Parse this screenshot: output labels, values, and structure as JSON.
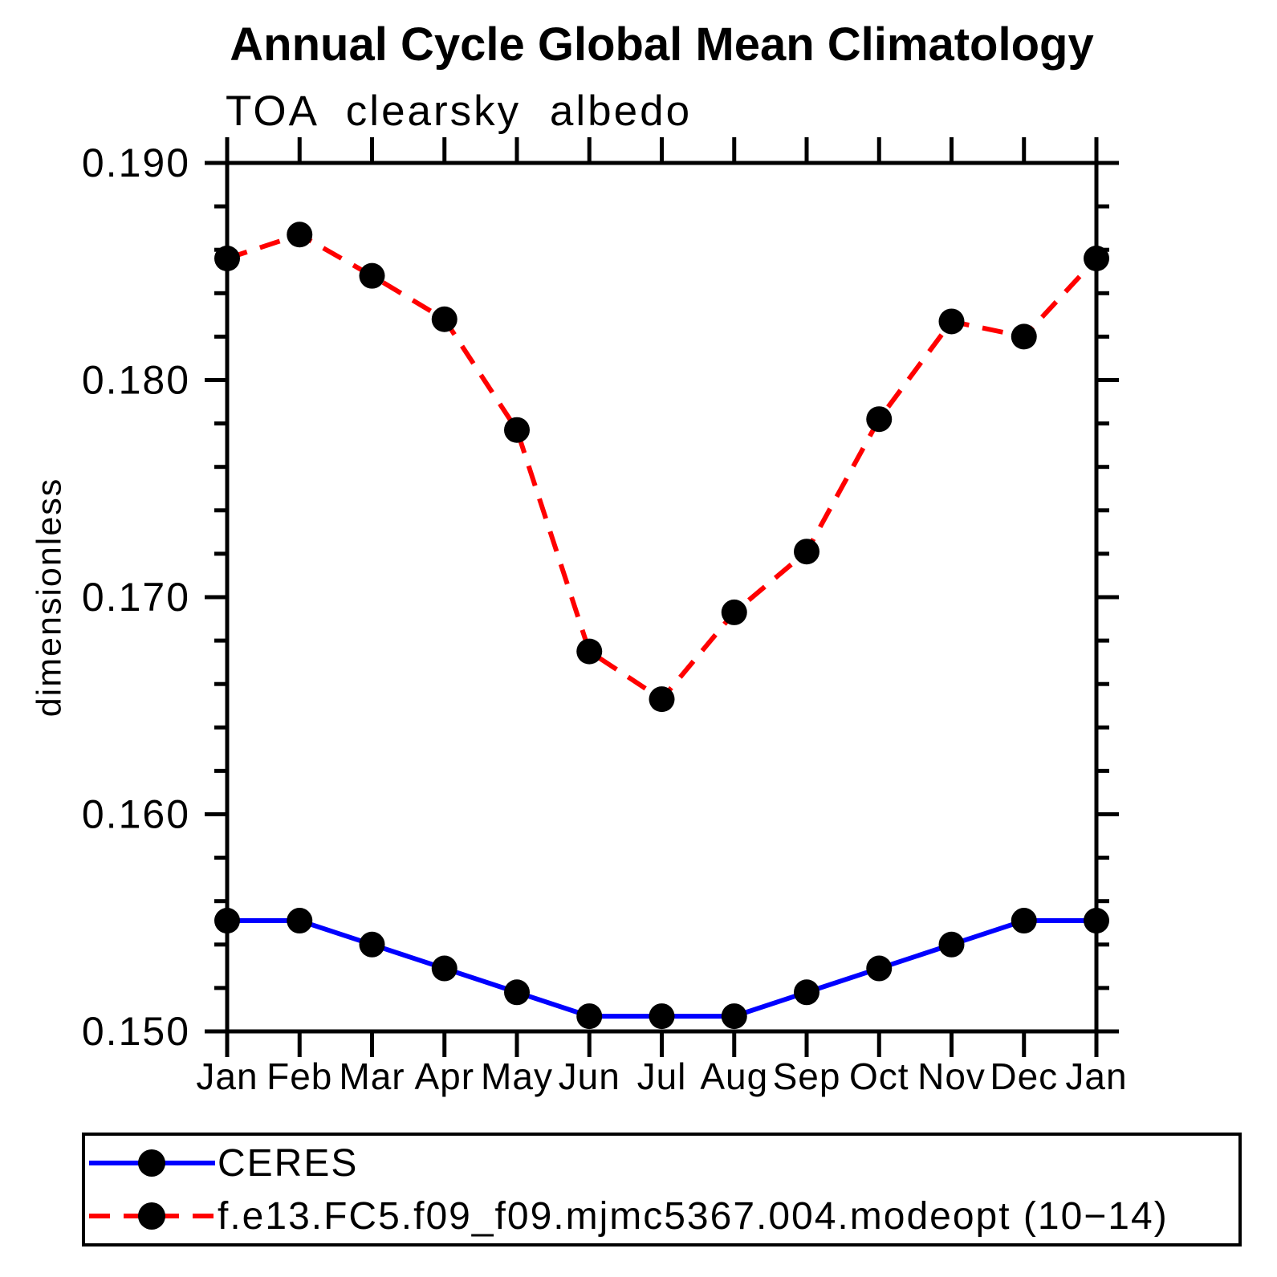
{
  "chart_data": {
    "type": "line",
    "title": "Annual Cycle Global Mean Climatology",
    "subtitle": "TOA clearsky albedo",
    "ylabel": "dimensionless",
    "xlabel": "",
    "categories": [
      "Jan",
      "Feb",
      "Mar",
      "Apr",
      "May",
      "Jun",
      "Jul",
      "Aug",
      "Sep",
      "Oct",
      "Nov",
      "Dec",
      "Jan"
    ],
    "ylim": [
      0.15,
      0.19
    ],
    "ytick_major": [
      0.19,
      0.18,
      0.17,
      0.16,
      0.15
    ],
    "ytick_labels": [
      "0.190",
      "0.180",
      "0.170",
      "0.160",
      "0.150"
    ],
    "ytick_minor_step": 0.002,
    "grid": false,
    "legend_position": "bottom",
    "axis_color": "#000000",
    "series": [
      {
        "name": "CERES",
        "color": "#0000ff",
        "style": "solid",
        "marker": "circle",
        "marker_color": "#000000",
        "values": [
          0.1551,
          0.1551,
          0.154,
          0.1529,
          0.1518,
          0.1507,
          0.1507,
          0.1507,
          0.1518,
          0.1529,
          0.154,
          0.1551,
          0.1551
        ]
      },
      {
        "name": "f.e13.FC5.f09_f09.mjmc5367.004.modeopt (10−14)",
        "color": "#ff0000",
        "style": "dashed",
        "marker": "circle",
        "marker_color": "#000000",
        "values": [
          0.1856,
          0.1867,
          0.1848,
          0.1828,
          0.1777,
          0.1675,
          0.1653,
          0.1693,
          0.1721,
          0.1782,
          0.1827,
          0.182,
          0.1856
        ]
      }
    ]
  }
}
